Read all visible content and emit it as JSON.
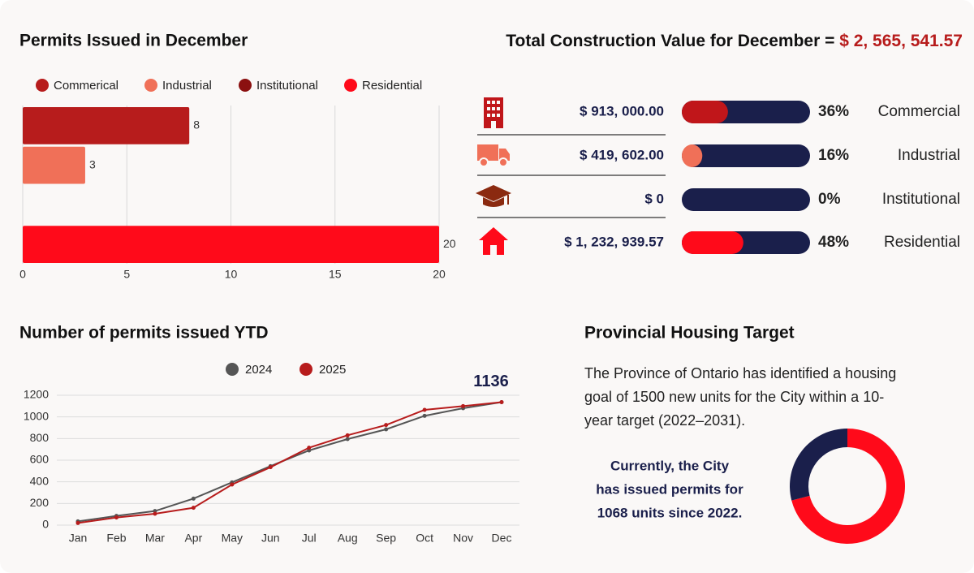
{
  "chart_data": [
    {
      "type": "hbar",
      "title": "Permits Issued in December",
      "categories": [
        "Commerical",
        "Industrial",
        "Institutional",
        "Residential"
      ],
      "values": [
        8,
        3,
        0,
        20
      ],
      "colors": [
        "#b71c1c",
        "#f07058",
        "#8b1010",
        "#ff0a1a"
      ],
      "xlim": [
        0,
        20
      ],
      "xticks": [
        0,
        5,
        10,
        15,
        20
      ],
      "grid": true,
      "legend": "top"
    },
    {
      "type": "line",
      "title": "Number of permits issued YTD",
      "categories": [
        "Jan",
        "Feb",
        "Mar",
        "Apr",
        "May",
        "Jun",
        "Jul",
        "Aug",
        "Sep",
        "Oct",
        "Nov",
        "Dec"
      ],
      "series": [
        {
          "name": "2024",
          "color": "#555555",
          "values": [
            35,
            85,
            130,
            245,
            395,
            545,
            690,
            795,
            885,
            1010,
            1080,
            1136
          ]
        },
        {
          "name": "2025",
          "color": "#b71c1c",
          "values": [
            20,
            70,
            105,
            160,
            375,
            535,
            715,
            830,
            925,
            1065,
            1100,
            1136
          ],
          "data_labels": "last"
        }
      ],
      "ylim": [
        0,
        1200
      ],
      "yticks": [
        0,
        200,
        400,
        600,
        800,
        1000,
        1200
      ],
      "grid": true,
      "legend": "top"
    },
    {
      "type": "donut",
      "values": [
        71,
        29
      ],
      "colors": [
        "#ff0a1a",
        "#1a1f4b"
      ]
    }
  ],
  "construction": {
    "title": "Total Construction Value for December = ",
    "total": "$ 2, 565, 541.57",
    "rows": [
      {
        "amount": "$ 913, 000.00",
        "percent": {
          "value": 36,
          "label": "36%"
        },
        "name": "Commercial",
        "color": "#c0161a"
      },
      {
        "amount": "$ 419, 602.00",
        "percent": {
          "value": 16,
          "label": "16%"
        },
        "name": "Industrial",
        "color": "#f07058"
      },
      {
        "amount": "$ 0",
        "percent": {
          "value": 0,
          "label": "0%"
        },
        "name": "Institutional",
        "color": "#8b1010"
      },
      {
        "amount": "$ 1, 232, 939.57",
        "percent": {
          "value": 48,
          "label": "48%"
        },
        "name": "Residential",
        "color": "#ff0a1a"
      }
    ]
  },
  "housing": {
    "title": "Provincial Housing Target",
    "text": [
      "The Province of Ontario has identified a housing",
      "goal of 1500 new units for the City within a 10-",
      "year target (2022–2031)."
    ],
    "note": [
      "Currently, the City",
      "has issued permits for",
      "1068 units since 2022."
    ]
  }
}
